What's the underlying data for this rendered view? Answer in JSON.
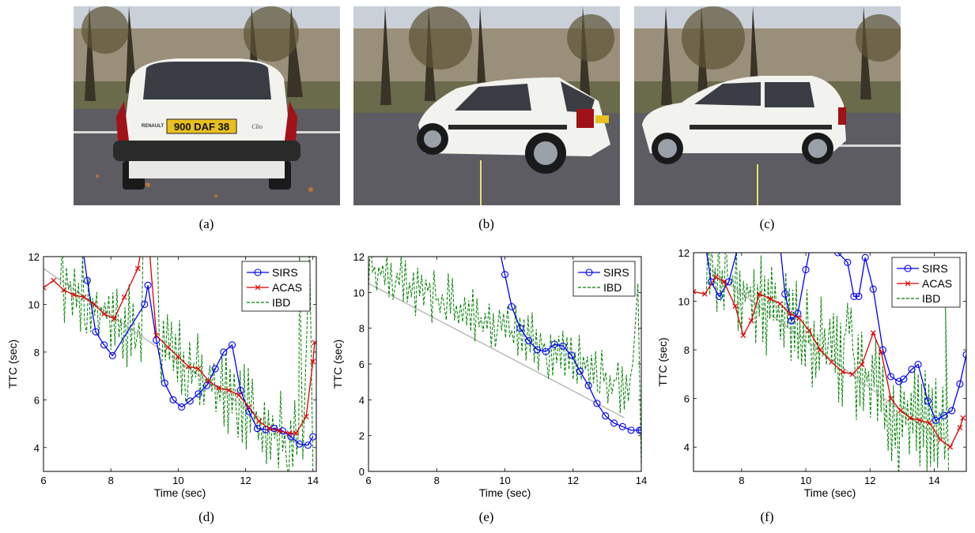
{
  "photos": [
    {
      "caption": "(a)",
      "plate": "900 DAF 38",
      "badge": "RENAULT",
      "model": "Clio"
    },
    {
      "caption": "(b)"
    },
    {
      "caption": "(c)"
    }
  ],
  "colors": {
    "SIRS": "#0000ff",
    "ACAS": "#e00000",
    "IBD": "#008000",
    "truth": "#b8b8b8"
  },
  "chart_data": [
    {
      "type": "line",
      "caption": "(d)",
      "xlabel": "Time (sec)",
      "ylabel": "TTC (sec)",
      "xlim": [
        6,
        14.1
      ],
      "ylim": [
        3,
        12
      ],
      "xticks": [
        6,
        8,
        10,
        12,
        14
      ],
      "yticks": [
        4,
        6,
        8,
        10,
        12
      ],
      "legend": [
        "SIRS",
        "ACAS",
        "IBD"
      ],
      "truth": {
        "x": [
          6,
          13.5
        ],
        "y": [
          11.5,
          4.2
        ]
      },
      "series": [
        {
          "name": "SIRS",
          "marker": "o",
          "x": [
            7.1,
            7.3,
            7.55,
            7.8,
            8.05,
            9.0,
            9.1,
            9.35,
            9.6,
            9.85,
            10.1,
            10.35,
            10.6,
            10.85,
            11.1,
            11.35,
            11.6,
            11.85,
            12.1,
            12.35,
            12.6,
            12.85,
            13.1,
            13.35,
            13.6,
            13.85,
            14.0
          ],
          "y": [
            13,
            11.0,
            8.85,
            8.3,
            7.85,
            10.0,
            10.8,
            8.5,
            6.7,
            6.0,
            5.7,
            5.95,
            6.25,
            6.6,
            7.3,
            8.0,
            8.3,
            6.4,
            5.5,
            4.8,
            4.75,
            4.8,
            4.7,
            4.45,
            4.15,
            4.1,
            4.45
          ]
        },
        {
          "name": "ACAS",
          "marker": "x",
          "x": [
            6.0,
            6.3,
            6.6,
            6.9,
            7.2,
            7.5,
            7.8,
            8.1,
            8.4,
            8.8,
            9.0,
            9.15,
            9.35,
            9.7,
            10.0,
            10.3,
            10.6,
            10.9,
            11.2,
            11.5,
            11.8,
            12.1,
            12.4,
            12.7,
            13.0,
            13.3,
            13.5,
            13.8,
            14.0,
            14.05
          ],
          "y": [
            10.7,
            11.0,
            10.6,
            10.4,
            10.3,
            10.0,
            9.6,
            9.4,
            10.3,
            11.5,
            13,
            12.2,
            8.7,
            8.2,
            7.8,
            7.4,
            7.3,
            6.8,
            6.5,
            6.4,
            6.2,
            5.7,
            5.1,
            4.8,
            4.7,
            4.6,
            4.6,
            5.3,
            7.6,
            8.4
          ]
        }
      ]
    },
    {
      "type": "line",
      "caption": "(e)",
      "xlabel": "Time (sec)",
      "ylabel": "TTC (sec)",
      "xlim": [
        6,
        14
      ],
      "ylim": [
        0,
        12
      ],
      "xticks": [
        6,
        8,
        10,
        12,
        14
      ],
      "yticks": [
        0,
        2,
        4,
        6,
        8,
        10,
        12
      ],
      "legend": [
        "SIRS",
        "IBD"
      ],
      "truth": {
        "x": [
          6,
          13.5
        ],
        "y": [
          10.5,
          3.0
        ]
      },
      "series": [
        {
          "name": "SIRS",
          "marker": "o",
          "x": [
            9.85,
            10.0,
            10.2,
            10.45,
            10.7,
            10.95,
            11.2,
            11.45,
            11.7,
            11.95,
            12.2,
            12.45,
            12.7,
            12.95,
            13.2,
            13.45,
            13.7,
            13.95,
            14.0
          ],
          "y": [
            12.3,
            11.0,
            9.2,
            8.0,
            7.3,
            6.8,
            6.7,
            7.1,
            7.0,
            6.5,
            5.6,
            4.8,
            3.8,
            3.1,
            2.7,
            2.5,
            2.3,
            2.3,
            2.3
          ]
        }
      ]
    },
    {
      "type": "line",
      "caption": "(f)",
      "xlabel": "Time (sec)",
      "ylabel": "TTC (sec)",
      "xlim": [
        6.5,
        15
      ],
      "ylim": [
        3,
        12
      ],
      "xticks": [
        8,
        10,
        12,
        14
      ],
      "yticks": [
        4,
        6,
        8,
        10,
        12
      ],
      "legend": [
        "SIRS",
        "ACAS",
        "IBD"
      ],
      "truth": {
        "x": [
          7,
          14.3
        ],
        "y": [
          11.3,
          4.2
        ]
      },
      "series": [
        {
          "name": "SIRS",
          "marker": "o",
          "x": [
            6.85,
            7.05,
            7.3,
            7.6,
            7.9,
            8.2,
            8.5,
            8.8,
            9.2,
            9.35,
            9.55,
            9.75,
            10.0,
            10.25,
            10.5,
            11.0,
            11.3,
            11.5,
            11.65,
            11.85,
            12.1,
            12.4,
            12.65,
            12.9,
            13.05,
            13.3,
            13.5,
            13.8,
            14.05,
            14.3,
            14.55,
            14.8,
            15.0
          ],
          "y": [
            12.5,
            10.8,
            10.2,
            10.8,
            12.3,
            13,
            13,
            12.5,
            12.3,
            10.3,
            9.2,
            9.5,
            11.3,
            13,
            12.5,
            12.0,
            11.6,
            10.2,
            10.2,
            11.8,
            10.5,
            8.0,
            6.9,
            6.7,
            6.8,
            7.2,
            7.4,
            5.9,
            5.1,
            5.3,
            5.5,
            6.6,
            7.8
          ]
        },
        {
          "name": "ACAS",
          "marker": "x",
          "x": [
            6.5,
            6.85,
            7.2,
            7.45,
            7.8,
            8.05,
            8.3,
            8.55,
            8.9,
            9.2,
            9.5,
            9.8,
            10.1,
            10.45,
            10.8,
            11.15,
            11.45,
            11.75,
            12.1,
            12.35,
            12.65,
            12.95,
            13.25,
            13.55,
            13.85,
            14.2,
            14.5,
            14.8,
            14.9
          ],
          "y": [
            10.4,
            10.3,
            11.0,
            10.8,
            9.8,
            8.6,
            9.2,
            10.3,
            10.1,
            9.9,
            9.5,
            9.3,
            8.8,
            8.0,
            7.5,
            7.1,
            7.0,
            7.4,
            8.7,
            7.9,
            6.0,
            5.5,
            5.2,
            5.1,
            5.0,
            4.3,
            4.0,
            4.8,
            5.2
          ]
        }
      ]
    }
  ]
}
